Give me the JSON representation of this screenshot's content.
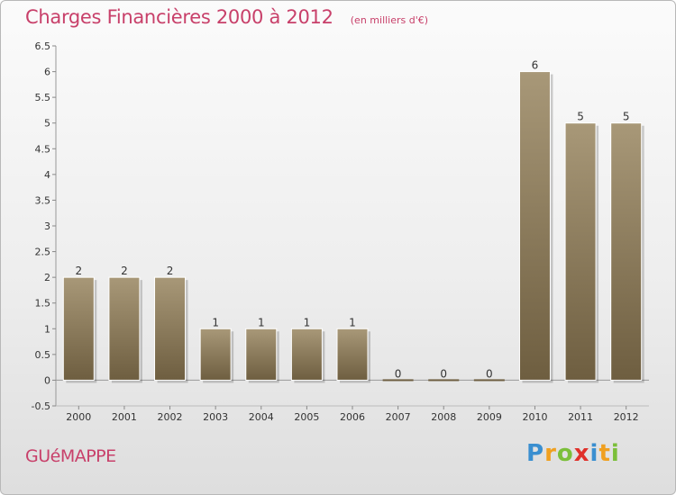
{
  "chart_data": {
    "type": "bar",
    "title": "Charges Financières 2000 à 2012",
    "subtitle": "(en milliers d'€)",
    "categories": [
      "2000",
      "2001",
      "2002",
      "2003",
      "2004",
      "2005",
      "2006",
      "2007",
      "2008",
      "2009",
      "2010",
      "2011",
      "2012"
    ],
    "values": [
      2,
      2,
      2,
      1,
      1,
      1,
      1,
      0,
      0,
      0,
      6,
      5,
      5
    ],
    "data_labels": [
      "2",
      "2",
      "2",
      "1",
      "1",
      "1",
      "1",
      "0",
      "0",
      "0",
      "6",
      "5",
      "5"
    ],
    "ylim": [
      -0.5,
      6.5
    ],
    "yticks": [
      "-0.5",
      "0",
      "0.5",
      "1",
      "1.5",
      "2",
      "2.5",
      "3",
      "3.5",
      "4",
      "4.5",
      "5",
      "5.5",
      "6",
      "6.5"
    ],
    "ytick_values": [
      -0.5,
      0,
      0.5,
      1,
      1.5,
      2,
      2.5,
      3,
      3.5,
      4,
      4.5,
      5,
      5.5,
      6,
      6.5
    ],
    "grid": false,
    "bar_color_top": "#a89878",
    "bar_color_bottom": "#6e5e40"
  },
  "footer": {
    "commune": "GUéMAPPE",
    "brand": "Proxiti",
    "brand_letters": [
      "P",
      "r",
      "o",
      "x",
      "i",
      "t",
      "i"
    ],
    "brand_colors": [
      "#3a8fd0",
      "#f0a020",
      "#7bbf3a",
      "#e0302a",
      "#3a8fd0",
      "#f0a020",
      "#7bbf3a"
    ]
  }
}
